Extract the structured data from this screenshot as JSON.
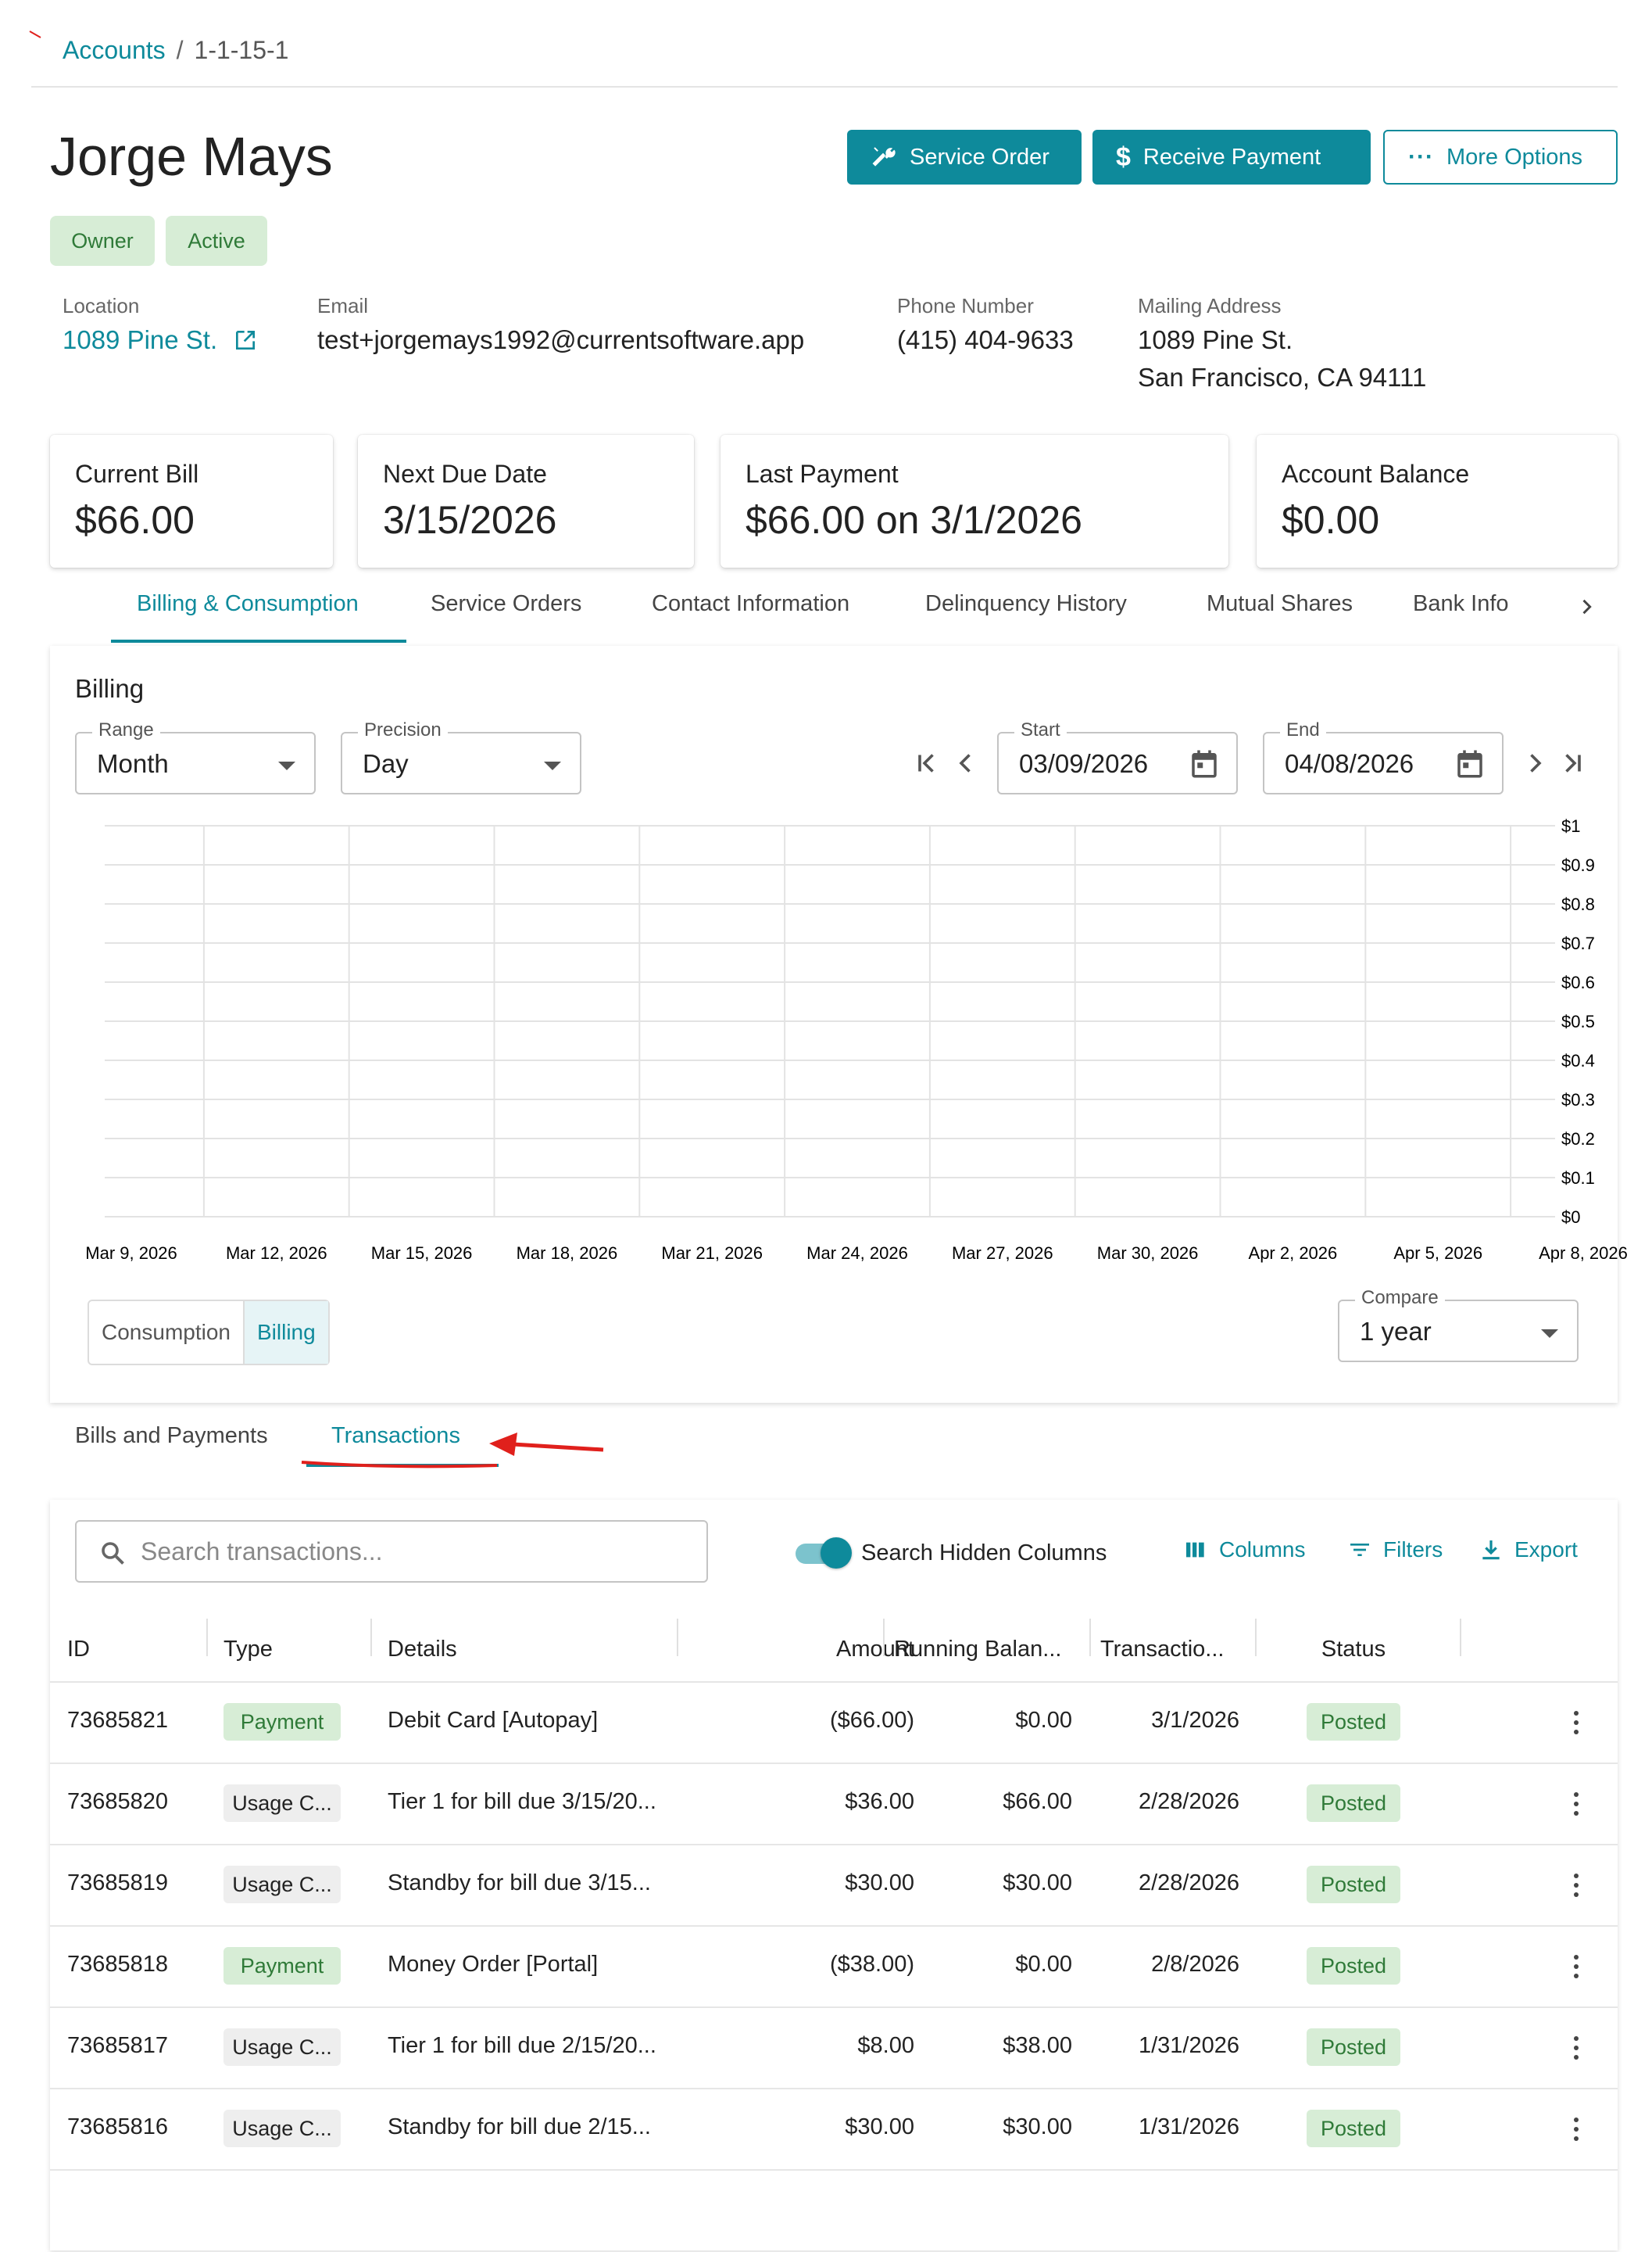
{
  "breadcrumb": {
    "root": "Accounts",
    "separator": "/",
    "current": "1-1-15-1"
  },
  "account": {
    "name": "Jorge Mays",
    "chips": [
      "Owner",
      "Active"
    ]
  },
  "actions": {
    "service_order": "Service Order",
    "receive_payment": "Receive Payment",
    "more_options": "More Options"
  },
  "info": {
    "location_label": "Location",
    "location_value": "1089 Pine St.",
    "email_label": "Email",
    "email_value": "test+jorgemays1992@currentsoftware.app",
    "phone_label": "Phone Number",
    "phone_value": "(415) 404-9633",
    "address_label": "Mailing Address",
    "address_line1": "1089 Pine St.",
    "address_line2": "San Francisco, CA 94111"
  },
  "summary": [
    {
      "label": "Current Bill",
      "value": "$66.00"
    },
    {
      "label": "Next Due Date",
      "value": "3/15/2026"
    },
    {
      "label": "Last Payment",
      "value": "$66.00 on 3/1/2026"
    },
    {
      "label": "Account Balance",
      "value": "$0.00"
    }
  ],
  "tabs": [
    "Billing & Consumption",
    "Service Orders",
    "Contact Information",
    "Delinquency History",
    "Mutual Shares",
    "Bank Info"
  ],
  "billing": {
    "title": "Billing",
    "range_label": "Range",
    "range_value": "Month",
    "precision_label": "Precision",
    "precision_value": "Day",
    "start_label": "Start",
    "start_value": "03/09/2026",
    "end_label": "End",
    "end_value": "04/08/2026",
    "toggle_consumption": "Consumption",
    "toggle_billing": "Billing",
    "compare_label": "Compare",
    "compare_value": "1 year"
  },
  "chart_data": {
    "type": "bar",
    "categories": [
      "Mar 9, 2026",
      "Mar 12, 2026",
      "Mar 15, 2026",
      "Mar 18, 2026",
      "Mar 21, 2026",
      "Mar 24, 2026",
      "Mar 27, 2026",
      "Mar 30, 2026",
      "Apr 2, 2026",
      "Apr 5, 2026",
      "Apr 8, 2026"
    ],
    "values": [
      0,
      0,
      0,
      0,
      0,
      0,
      0,
      0,
      0,
      0,
      0
    ],
    "yticks": [
      "$1",
      "$0.9",
      "$0.8",
      "$0.7",
      "$0.6",
      "$0.5",
      "$0.4",
      "$0.3",
      "$0.2",
      "$0.1",
      "$0"
    ],
    "ylim": [
      0,
      1
    ],
    "grid": true,
    "yaxis_side": "right"
  },
  "subtabs": [
    "Bills and Payments",
    "Transactions"
  ],
  "transactions": {
    "search_placeholder": "Search transactions...",
    "search_hidden_label": "Search Hidden Columns",
    "columns_label": "Columns",
    "filters_label": "Filters",
    "export_label": "Export",
    "headers": [
      "ID",
      "Type",
      "Details",
      "Amount",
      "Running Balan...",
      "Transactio...",
      "Status"
    ],
    "rows": [
      {
        "id": "73685821",
        "type": "Payment",
        "details": "Debit Card [Autopay]",
        "amount": "($66.00)",
        "running": "$0.00",
        "date": "3/1/2026",
        "status": "Posted"
      },
      {
        "id": "73685820",
        "type": "Usage C...",
        "details": "Tier 1 for bill due 3/15/20...",
        "amount": "$36.00",
        "running": "$66.00",
        "date": "2/28/2026",
        "status": "Posted"
      },
      {
        "id": "73685819",
        "type": "Usage C...",
        "details": "Standby for bill due 3/15...",
        "amount": "$30.00",
        "running": "$30.00",
        "date": "2/28/2026",
        "status": "Posted"
      },
      {
        "id": "73685818",
        "type": "Payment",
        "details": "Money Order [Portal]",
        "amount": "($38.00)",
        "running": "$0.00",
        "date": "2/8/2026",
        "status": "Posted"
      },
      {
        "id": "73685817",
        "type": "Usage C...",
        "details": "Tier 1 for bill due 2/15/20...",
        "amount": "$8.00",
        "running": "$38.00",
        "date": "1/31/2026",
        "status": "Posted"
      },
      {
        "id": "73685816",
        "type": "Usage C...",
        "details": "Standby for bill due 2/15...",
        "amount": "$30.00",
        "running": "$30.00",
        "date": "1/31/2026",
        "status": "Posted"
      }
    ]
  },
  "colors": {
    "accent": "#0e8a9b",
    "chip_green_bg": "#d7edd6",
    "chip_green_fg": "#2f7a38",
    "annotation": "#e0201c"
  }
}
